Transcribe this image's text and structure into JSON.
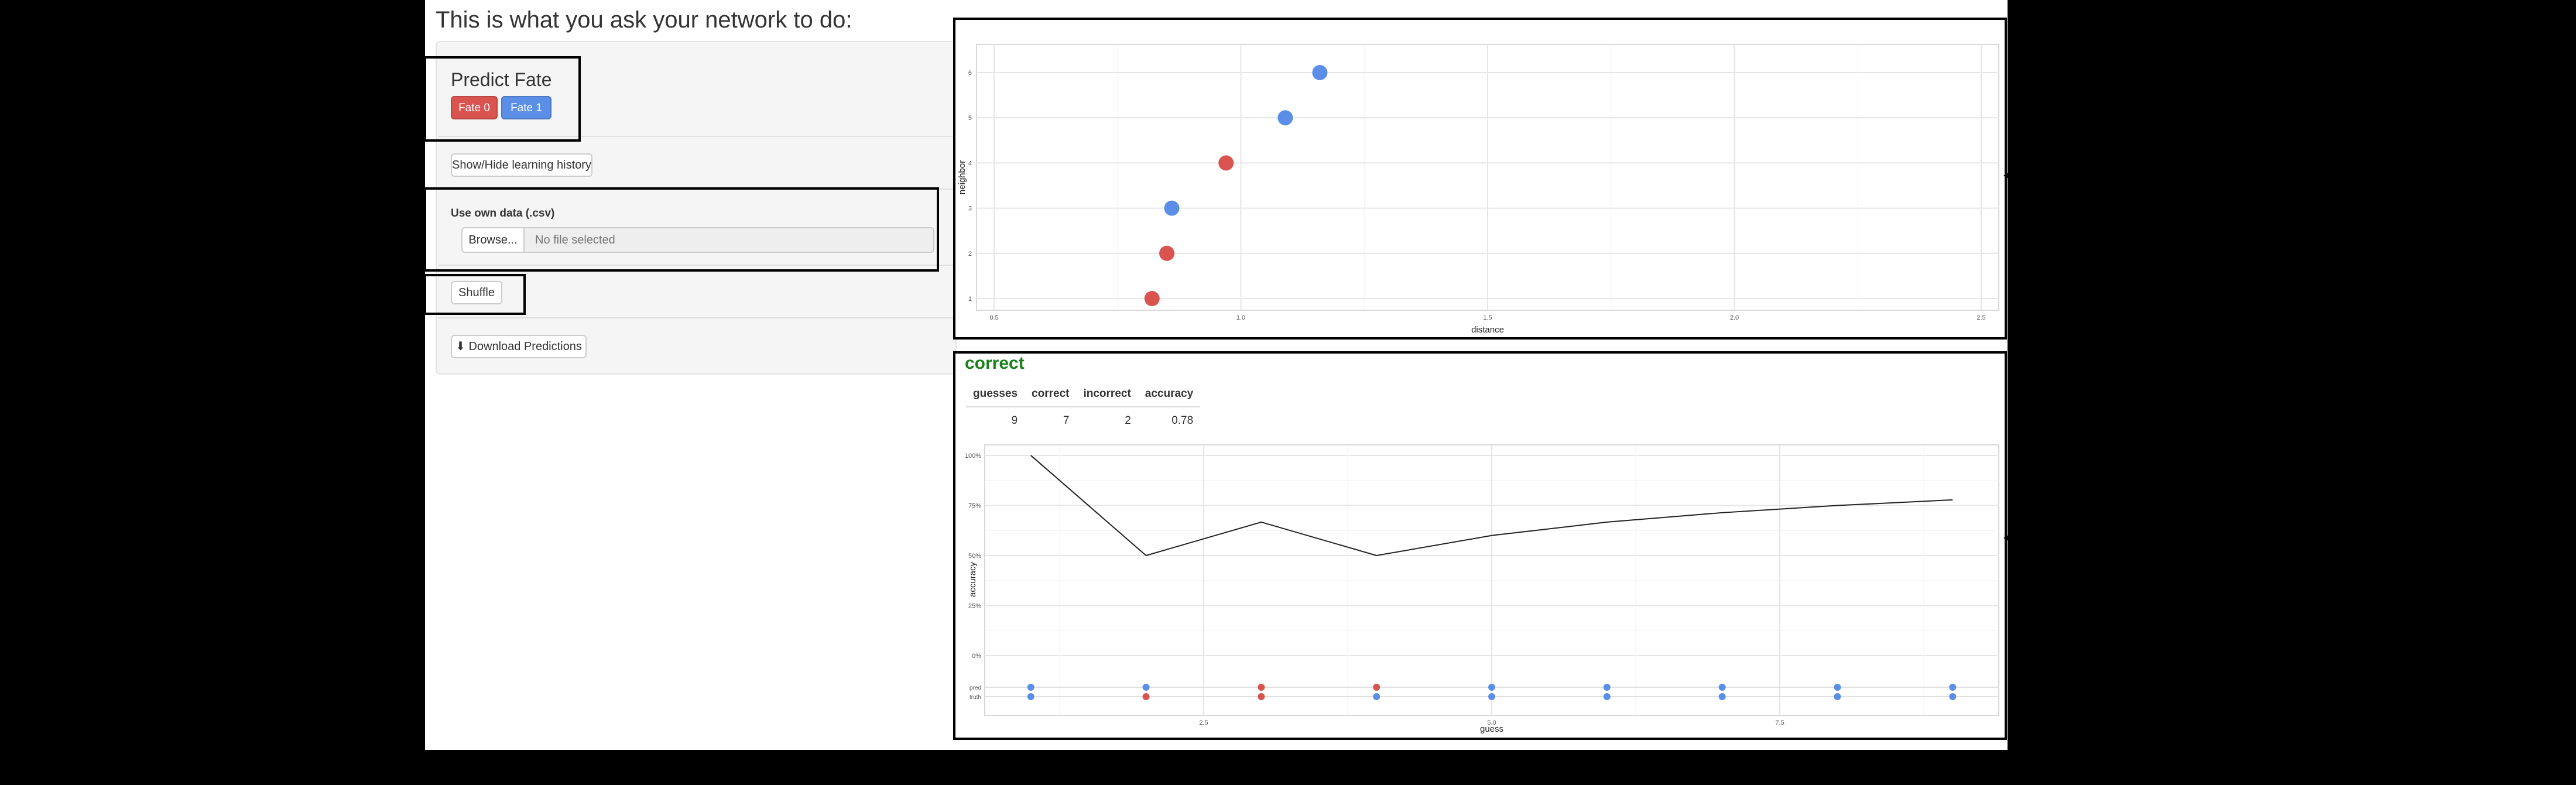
{
  "heading": "This is what you ask your network to do:",
  "predict": {
    "title": "Predict Fate",
    "fate0_label": "Fate 0",
    "fate1_label": "Fate 1",
    "fate0_color": "#d9534f",
    "fate1_color": "#5b8ee6"
  },
  "history_button": "Show/Hide learning history",
  "upload": {
    "label": "Use own data (.csv)",
    "browse_label": "Browse...",
    "placeholder": "No file selected"
  },
  "shuffle_label": "Shuffle",
  "download_label": "Download Predictions",
  "result": {
    "text": "correct",
    "color": "#1a7f1a"
  },
  "stats": {
    "headers": [
      "guesses",
      "correct",
      "incorrect",
      "accuracy"
    ],
    "values": [
      "9",
      "7",
      "2",
      "0.78"
    ]
  },
  "chart_data": [
    {
      "type": "scatter",
      "xlabel": "distance",
      "ylabel": "neighbor",
      "xlim": [
        0.5,
        2.5
      ],
      "ylim": [
        1,
        6
      ],
      "x_ticks": [
        "0.5",
        "1.0",
        "1.5",
        "2.0",
        "2.5"
      ],
      "y_ticks": [
        "1",
        "2",
        "3",
        "4",
        "5",
        "6"
      ],
      "points": [
        {
          "x": 0.82,
          "y": 1,
          "fate": 0
        },
        {
          "x": 0.85,
          "y": 2,
          "fate": 0
        },
        {
          "x": 0.86,
          "y": 3,
          "fate": 1
        },
        {
          "x": 0.97,
          "y": 4,
          "fate": 0
        },
        {
          "x": 1.09,
          "y": 5,
          "fate": 1
        },
        {
          "x": 1.16,
          "y": 6,
          "fate": 1
        }
      ],
      "grid": true
    },
    {
      "type": "line",
      "xlabel": "guess",
      "ylabel": "accuracy",
      "x_ticks": [
        "2.5",
        "5.0",
        "7.5"
      ],
      "y_ticks": [
        "0%",
        "25%",
        "50%",
        "75%",
        "100%"
      ],
      "x": [
        1,
        2,
        3,
        4,
        5,
        6,
        7,
        8,
        9
      ],
      "accuracy": [
        1.0,
        0.5,
        0.667,
        0.5,
        0.6,
        0.667,
        0.714,
        0.75,
        0.778
      ],
      "strip_labels": [
        "pred",
        "truth"
      ],
      "pred": [
        1,
        1,
        0,
        0,
        1,
        1,
        1,
        1,
        1
      ],
      "truth": [
        1,
        0,
        0,
        1,
        1,
        1,
        1,
        1,
        1
      ],
      "grid": true
    }
  ]
}
